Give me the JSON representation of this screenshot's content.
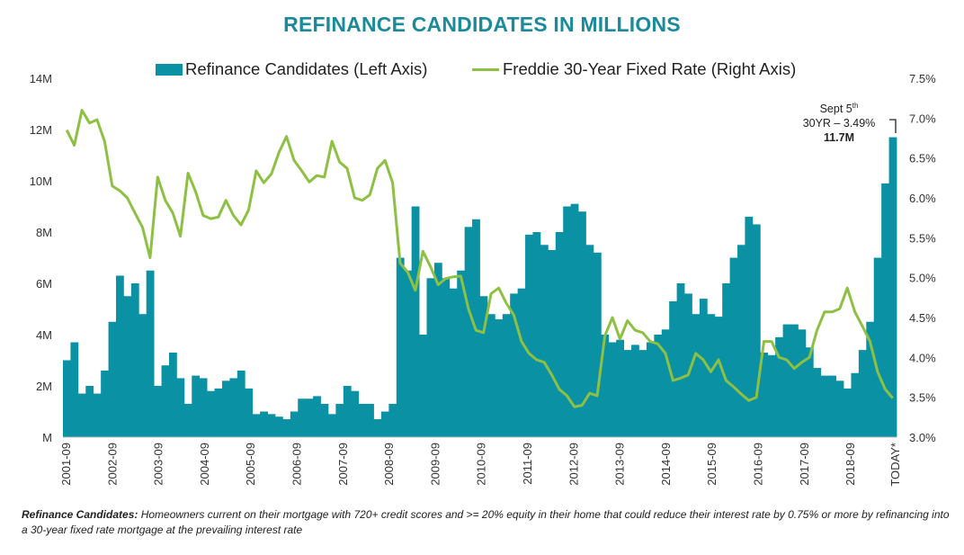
{
  "chart_data": {
    "type": "bar+line",
    "title": "REFINANCE CANDIDATES IN MILLIONS",
    "legend": [
      "Refinance Candidates (Left Axis)",
      "Freddie 30-Year Fixed Rate (Right Axis)"
    ],
    "legend_position": "top",
    "left_axis": {
      "ticks": [
        "M",
        "2M",
        "4M",
        "6M",
        "8M",
        "10M",
        "12M",
        "14M"
      ],
      "range": [
        0,
        14
      ],
      "unit": "millions"
    },
    "right_axis": {
      "ticks": [
        "3.0%",
        "3.5%",
        "4.0%",
        "4.5%",
        "5.0%",
        "5.5%",
        "6.0%",
        "6.5%",
        "7.0%",
        "7.5%"
      ],
      "range": [
        3.0,
        7.5
      ],
      "unit": "percent"
    },
    "x_ticks": [
      "2001-09",
      "2002-09",
      "2003-09",
      "2004-09",
      "2005-09",
      "2006-09",
      "2007-09",
      "2008-09",
      "2009-09",
      "2010-09",
      "2011-09",
      "2012-09",
      "2013-09",
      "2014-09",
      "2015-09",
      "2016-09",
      "2017-09",
      "2018-09",
      "TODAY*"
    ],
    "x_range": [
      "2001-09",
      "TODAY*"
    ],
    "sampling": "approx. every 2 months",
    "series": [
      {
        "name": "Refinance Candidates (Left Axis)",
        "type": "bar",
        "color": "#0b91a4",
        "values": [
          3.0,
          3.7,
          1.7,
          2.0,
          1.7,
          2.6,
          4.5,
          6.3,
          5.5,
          6.0,
          4.8,
          6.5,
          2.0,
          2.8,
          3.3,
          2.3,
          1.3,
          2.4,
          2.3,
          1.8,
          1.9,
          2.2,
          2.3,
          2.6,
          1.9,
          0.9,
          1.0,
          0.9,
          0.8,
          0.7,
          1.0,
          1.5,
          1.5,
          1.6,
          1.3,
          0.9,
          1.3,
          2.0,
          1.8,
          1.3,
          1.3,
          0.7,
          1.0,
          1.3,
          7.0,
          6.5,
          9.0,
          4.0,
          6.2,
          6.8,
          6.2,
          5.8,
          6.5,
          8.2,
          8.5,
          5.5,
          4.8,
          4.6,
          4.8,
          5.6,
          5.8,
          7.9,
          8.0,
          7.5,
          7.3,
          8.0,
          9.0,
          9.1,
          8.8,
          7.5,
          7.2,
          4.0,
          3.7,
          3.8,
          3.4,
          3.6,
          3.4,
          3.7,
          4.0,
          4.2,
          5.3,
          6.0,
          5.6,
          4.8,
          5.4,
          4.8,
          4.7,
          6.0,
          7.0,
          7.5,
          8.6,
          8.3,
          3.3,
          3.2,
          3.9,
          4.4,
          4.4,
          4.2,
          3.5,
          2.7,
          2.4,
          2.4,
          2.2,
          1.9,
          2.5,
          3.4,
          4.5,
          7.0,
          9.9,
          11.7
        ]
      },
      {
        "name": "Freddie 30-Year Fixed Rate (Right Axis)",
        "type": "line",
        "color": "#8dc043",
        "values": [
          6.85,
          6.66,
          7.1,
          6.94,
          6.98,
          6.71,
          6.15,
          6.09,
          6.0,
          5.81,
          5.63,
          5.25,
          6.26,
          5.97,
          5.81,
          5.52,
          6.31,
          6.08,
          5.78,
          5.74,
          5.76,
          5.97,
          5.78,
          5.66,
          5.85,
          6.34,
          6.19,
          6.3,
          6.57,
          6.77,
          6.47,
          6.34,
          6.2,
          6.28,
          6.26,
          6.71,
          6.45,
          6.37,
          6.0,
          5.97,
          6.04,
          6.37,
          6.47,
          6.19,
          5.18,
          5.07,
          4.84,
          5.33,
          5.14,
          4.91,
          4.99,
          5.01,
          5.02,
          4.61,
          4.34,
          4.31,
          4.8,
          4.87,
          4.68,
          4.53,
          4.2,
          4.05,
          3.97,
          3.94,
          3.78,
          3.6,
          3.52,
          3.38,
          3.4,
          3.55,
          3.52,
          4.27,
          4.5,
          4.23,
          4.46,
          4.34,
          4.31,
          4.2,
          4.17,
          4.05,
          3.71,
          3.74,
          3.78,
          4.05,
          3.97,
          3.82,
          3.97,
          3.71,
          3.63,
          3.54,
          3.46,
          3.5,
          4.2,
          4.2,
          4.0,
          3.97,
          3.86,
          3.94,
          4.0,
          4.34,
          4.57,
          4.57,
          4.61,
          4.87,
          4.57,
          4.39,
          4.2,
          3.82,
          3.6,
          3.49
        ]
      }
    ],
    "annotation": {
      "line1": "Sept 5",
      "line1_sup": "th",
      "line2": "30YR – 3.49%",
      "line3": "11.7M"
    },
    "grid": false
  },
  "footnote": {
    "label": "Refinance Candidates:",
    "text": " Homeowners current on their mortgage with 720+ credit scores and >= 20% equity in their home that could reduce their interest rate by 0.75% or more by refinancing into a 30-year fixed rate mortgage at the prevailing interest rate"
  }
}
